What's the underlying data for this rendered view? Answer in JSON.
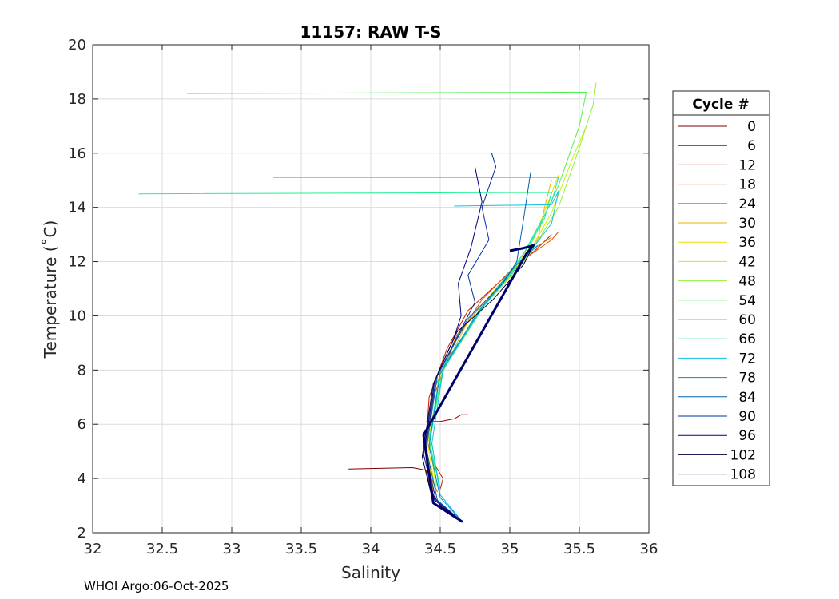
{
  "footer": "WHOI Argo:06-Oct-2025",
  "chart_data": {
    "type": "line",
    "title": "11157: RAW T-S",
    "xlabel": "Salinity",
    "ylabel": "Temperature (˚C)",
    "xlim": [
      32,
      36
    ],
    "ylim": [
      2,
      20
    ],
    "xticks": [
      32,
      32.5,
      33,
      33.5,
      34,
      34.5,
      35,
      35.5,
      36
    ],
    "yticks": [
      2,
      4,
      6,
      8,
      10,
      12,
      14,
      16,
      18,
      20
    ],
    "grid": true,
    "legend": {
      "title": "Cycle #",
      "placement": "right-outside",
      "entries": [
        "0",
        "6",
        "12",
        "18",
        "24",
        "30",
        "36",
        "42",
        "48",
        "54",
        "60",
        "66",
        "72",
        "78",
        "84",
        "90",
        "96",
        "102",
        "108"
      ],
      "colors": [
        "#800000",
        "#a00000",
        "#c81e00",
        "#dc5000",
        "#c87800",
        "#e6b400",
        "#f0e000",
        "#c8f000",
        "#90f040",
        "#50f050",
        "#20f090",
        "#20e0c0",
        "#10c0e0",
        "#0090c0",
        "#0060b0",
        "#0030a0",
        "#000080",
        "#000040",
        "#00006a"
      ]
    },
    "series": [
      {
        "name": "0",
        "color": "#800000",
        "x": [
          33.84,
          34.3,
          34.4,
          34.42,
          34.45,
          34.5,
          34.58,
          34.65
        ],
        "y": [
          4.35,
          4.4,
          4.3,
          3.8,
          3.4,
          3.0,
          2.7,
          2.4
        ]
      },
      {
        "name": "6",
        "color": "#a00000",
        "x": [
          34.4,
          34.5,
          34.6,
          34.65,
          34.7
        ],
        "y": [
          6.1,
          6.1,
          6.2,
          6.35,
          6.35
        ]
      },
      {
        "name": "12",
        "color": "#c81e00",
        "x": [
          34.5,
          34.52,
          34.45,
          34.4,
          34.42,
          34.55,
          34.7,
          35.0,
          35.2,
          35.3
        ],
        "y": [
          3.6,
          4.0,
          4.6,
          5.5,
          7.0,
          8.8,
          10.2,
          11.6,
          12.5,
          13.0
        ]
      },
      {
        "name": "18",
        "color": "#dc5000",
        "x": [
          34.48,
          34.42,
          34.4,
          34.45,
          34.6,
          34.8,
          35.05,
          35.3,
          35.35
        ],
        "y": [
          3.5,
          4.2,
          5.4,
          7.0,
          9.0,
          10.6,
          11.9,
          12.8,
          13.1
        ]
      },
      {
        "name": "24",
        "color": "#c87800",
        "x": [
          34.45,
          34.4,
          34.45,
          34.62,
          34.9,
          35.15,
          35.3
        ],
        "y": [
          3.5,
          5.0,
          7.2,
          9.3,
          11.0,
          12.4,
          12.9
        ]
      },
      {
        "name": "30",
        "color": "#e6b400",
        "x": [
          34.45,
          34.4,
          34.47,
          34.7,
          35.0,
          35.2,
          35.25,
          35.3
        ],
        "y": [
          3.6,
          5.2,
          7.5,
          9.8,
          11.6,
          12.8,
          14.0,
          15.0
        ]
      },
      {
        "name": "36",
        "color": "#f0e000",
        "x": [
          34.46,
          34.41,
          34.5,
          34.75,
          35.05,
          35.2,
          35.3,
          35.35
        ],
        "y": [
          3.7,
          5.3,
          7.8,
          10.0,
          11.8,
          13.2,
          14.5,
          15.2
        ]
      },
      {
        "name": "42",
        "color": "#c8f000",
        "x": [
          34.47,
          34.42,
          34.52,
          34.8,
          35.1,
          35.3,
          35.45,
          35.55
        ],
        "y": [
          3.7,
          5.4,
          8.0,
          10.3,
          12.0,
          13.8,
          15.8,
          17.0
        ]
      },
      {
        "name": "48",
        "color": "#90f040",
        "x": [
          34.48,
          34.42,
          34.53,
          34.82,
          35.12,
          35.35,
          35.5,
          35.6,
          35.62
        ],
        "y": [
          3.7,
          5.5,
          8.1,
          10.4,
          12.1,
          14.0,
          16.2,
          17.8,
          18.6
        ]
      },
      {
        "name": "54",
        "color": "#50f050",
        "x": [
          32.68,
          35.55,
          35.5,
          35.35,
          35.12,
          34.82,
          34.52,
          34.42,
          34.48
        ],
        "y": [
          18.2,
          18.25,
          17.0,
          14.8,
          12.3,
          10.4,
          8.0,
          5.5,
          3.7
        ]
      },
      {
        "name": "60",
        "color": "#20f090",
        "x": [
          32.33,
          35.3,
          35.25,
          35.1,
          34.82,
          34.52,
          34.43,
          34.5
        ],
        "y": [
          14.5,
          14.55,
          13.6,
          12.3,
          10.4,
          8.1,
          5.5,
          3.6
        ]
      },
      {
        "name": "66",
        "color": "#20e0c0",
        "x": [
          33.3,
          35.35,
          35.3,
          35.1,
          34.8,
          34.5,
          34.42,
          34.5
        ],
        "y": [
          15.1,
          15.1,
          14.2,
          12.3,
          10.3,
          8.0,
          5.4,
          3.6
        ]
      },
      {
        "name": "72",
        "color": "#10c0e0",
        "x": [
          34.6,
          35.3,
          35.35,
          35.3,
          35.12,
          34.8,
          34.52,
          34.44,
          34.5,
          34.66
        ],
        "y": [
          14.05,
          14.1,
          14.6,
          13.4,
          12.2,
          10.3,
          8.0,
          5.3,
          3.4,
          2.4
        ]
      },
      {
        "name": "78",
        "color": "#0090c0",
        "x": [
          34.66,
          34.5,
          34.42,
          34.5,
          34.78,
          35.05,
          35.2
        ],
        "y": [
          2.4,
          3.3,
          5.2,
          7.9,
          10.2,
          11.9,
          12.6
        ]
      },
      {
        "name": "84",
        "color": "#0060b0",
        "x": [
          34.66,
          34.48,
          34.4,
          34.48,
          34.7,
          34.95,
          35.05,
          35.1,
          35.15
        ],
        "y": [
          2.4,
          3.2,
          5.1,
          7.8,
          9.9,
          11.2,
          12.0,
          13.6,
          15.3
        ]
      },
      {
        "name": "90",
        "color": "#0030a0",
        "x": [
          34.66,
          34.47,
          34.39,
          34.47,
          34.65,
          34.75,
          34.7,
          34.85,
          34.8,
          34.9,
          34.87
        ],
        "y": [
          2.4,
          3.2,
          5.0,
          7.7,
          9.5,
          10.5,
          11.5,
          12.8,
          14.0,
          15.5,
          16.0
        ]
      },
      {
        "name": "96",
        "color": "#000080",
        "x": [
          34.66,
          34.46,
          34.38,
          34.46,
          34.6,
          34.65,
          34.63,
          34.72,
          34.8,
          34.75
        ],
        "y": [
          2.4,
          3.2,
          4.9,
          7.6,
          9.2,
          10.0,
          11.2,
          12.5,
          14.2,
          15.5
        ]
      },
      {
        "name": "102",
        "color": "#000040",
        "x": [
          34.66,
          34.45,
          34.37,
          34.45,
          34.62,
          34.88,
          35.1,
          35.17
        ],
        "y": [
          2.4,
          3.1,
          4.8,
          7.5,
          9.4,
          10.6,
          11.9,
          12.6
        ]
      },
      {
        "name": "108",
        "color": "#00006a",
        "x": [
          34.66,
          34.45,
          34.38,
          35.12,
          35.17,
          35.1,
          35.0
        ],
        "y": [
          2.4,
          3.1,
          5.6,
          12.3,
          12.6,
          12.5,
          12.4
        ]
      }
    ]
  }
}
